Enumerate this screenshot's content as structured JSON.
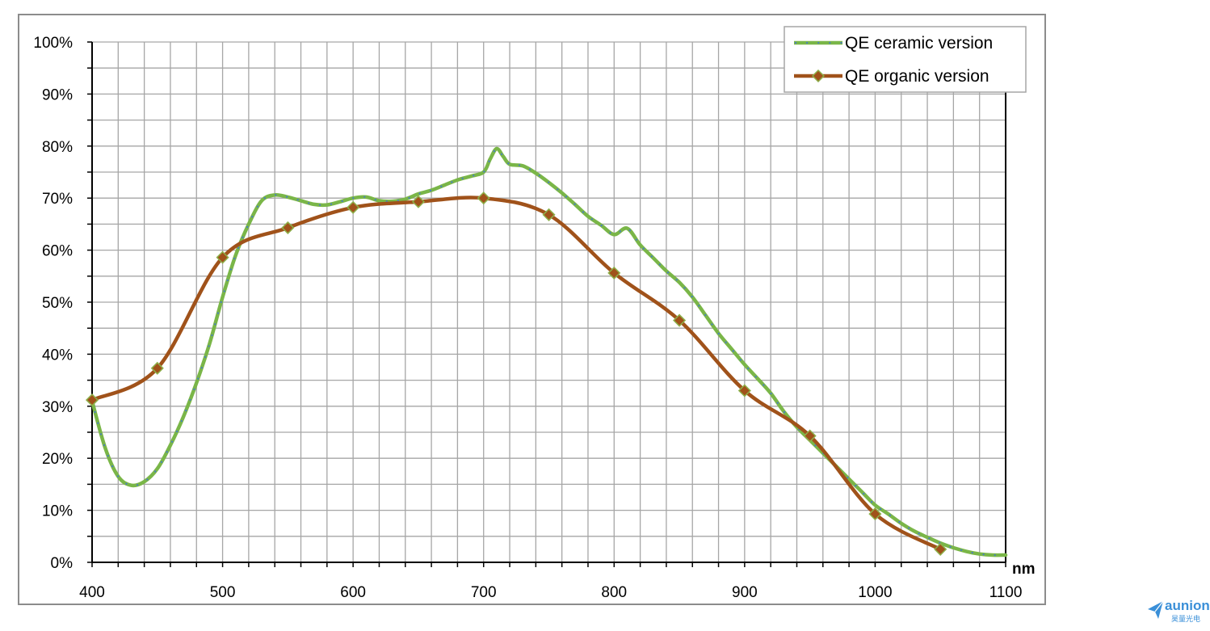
{
  "chart_data": {
    "type": "line",
    "xlabel": "nm",
    "ylabel": "",
    "xlim": [
      400,
      1100
    ],
    "ylim": [
      0,
      100
    ],
    "x_ticks": [
      "400",
      "500",
      "600",
      "700",
      "800",
      "900",
      "1000",
      "1100"
    ],
    "y_ticks": [
      "0%",
      "10%",
      "20%",
      "30%",
      "40%",
      "50%",
      "60%",
      "70%",
      "80%",
      "90%",
      "100%"
    ],
    "grid": true,
    "legend_position": "top-right",
    "series": [
      {
        "name": "QE ceramic version",
        "color": "#7ab648",
        "dot_color": "#4a7fc1",
        "marker": "none",
        "x": [
          400,
          410,
          420,
          430,
          440,
          450,
          460,
          470,
          480,
          490,
          500,
          510,
          520,
          530,
          540,
          550,
          560,
          570,
          580,
          590,
          600,
          610,
          620,
          630,
          640,
          650,
          660,
          670,
          680,
          690,
          700,
          705,
          710,
          715,
          720,
          730,
          740,
          750,
          760,
          770,
          780,
          790,
          800,
          810,
          820,
          830,
          840,
          850,
          860,
          870,
          880,
          890,
          900,
          910,
          920,
          930,
          940,
          950,
          960,
          970,
          980,
          990,
          1000,
          1010,
          1020,
          1030,
          1040,
          1050,
          1060,
          1070,
          1080,
          1090,
          1100
        ],
        "y": [
          31,
          22,
          16.5,
          14.8,
          15.5,
          18,
          22.5,
          28,
          34.5,
          42,
          51,
          59,
          65,
          69.5,
          70.6,
          70.2,
          69.5,
          68.8,
          68.7,
          69.3,
          70,
          70.2,
          69.5,
          69.4,
          69.8,
          70.8,
          71.5,
          72.5,
          73.5,
          74.2,
          75,
          77.5,
          79.5,
          78,
          76.5,
          76.2,
          74.8,
          73,
          71,
          68.8,
          66.5,
          64.8,
          63,
          64.2,
          61,
          58.5,
          56,
          53.8,
          51,
          47.5,
          44,
          41,
          38,
          35.3,
          32.5,
          29,
          26,
          23.5,
          21,
          18.5,
          16,
          13.5,
          11,
          9.3,
          7.5,
          6,
          4.8,
          3.7,
          2.8,
          2.1,
          1.6,
          1.4,
          1.4
        ]
      },
      {
        "name": "QE organic version",
        "color": "#a0521a",
        "marker": "diamond",
        "x": [
          400,
          450,
          500,
          550,
          600,
          650,
          700,
          750,
          800,
          850,
          900,
          950,
          1000,
          1050
        ],
        "y": [
          31.2,
          37.3,
          58.6,
          64.3,
          68.2,
          69.3,
          70.0,
          66.8,
          55.6,
          46.5,
          33.0,
          24.3,
          9.3,
          2.5
        ]
      }
    ]
  },
  "brand": {
    "name": "aunion",
    "subtitle": "昊量光电"
  }
}
